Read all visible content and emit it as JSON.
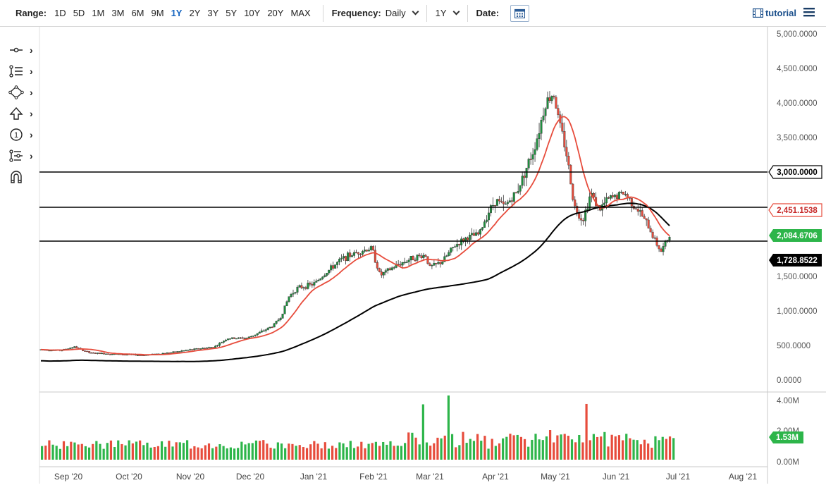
{
  "toolbar": {
    "range_label": "Range:",
    "ranges": [
      "1D",
      "5D",
      "1M",
      "3M",
      "6M",
      "9M",
      "1Y",
      "2Y",
      "3Y",
      "5Y",
      "10Y",
      "20Y",
      "MAX"
    ],
    "active_range": "1Y",
    "frequency_label": "Frequency:",
    "frequency_value": "Daily",
    "period_value": "1Y",
    "date_label": "Date:",
    "tutorial_label": "tutorial"
  },
  "tools": [
    {
      "icon": "crosshair-line-icon"
    },
    {
      "icon": "trend-lines-icon"
    },
    {
      "icon": "shapes-icon"
    },
    {
      "icon": "arrow-up-icon"
    },
    {
      "icon": "annotation-number-icon"
    },
    {
      "icon": "measure-tools-icon"
    },
    {
      "icon": "magnet-icon"
    }
  ],
  "chart_data": {
    "type": "candlestick",
    "y_ticks": [
      "5,000.0000",
      "4,500.0000",
      "4,000.0000",
      "3,500.0000",
      "1,500.0000",
      "1,000.0000",
      "500.0000",
      "0.0000"
    ],
    "ylim": [
      0,
      5000
    ],
    "x_ticks": [
      "Sep '20",
      "Oct '20",
      "Nov '20",
      "Dec '20",
      "Jan '21",
      "Feb '21",
      "Mar '21",
      "Apr '21",
      "May '21",
      "Jun '21",
      "Jul '21",
      "Aug '21"
    ],
    "horizontal_lines": [
      {
        "value": 3000,
        "label": "3,000.0000"
      },
      {
        "value": 2451.1538,
        "label": "2,451.1538"
      },
      {
        "value": 2084.6706,
        "label": "2,084.6706"
      }
    ],
    "ma_labels": {
      "ma50": "2,451.1538",
      "ma200": "1,728.8522"
    },
    "last_price_label": "2,084.6706",
    "colors": {
      "up": "#1e8e3e",
      "down": "#e74c3c",
      "ma50": "#e74c3c",
      "ma200": "#000000",
      "price_flag": "#2db54a"
    },
    "volume": {
      "y_ticks": [
        "4.00M",
        "2.00M",
        "0.00M"
      ],
      "last_label": "1.53M",
      "ylim": [
        0,
        4
      ]
    }
  }
}
